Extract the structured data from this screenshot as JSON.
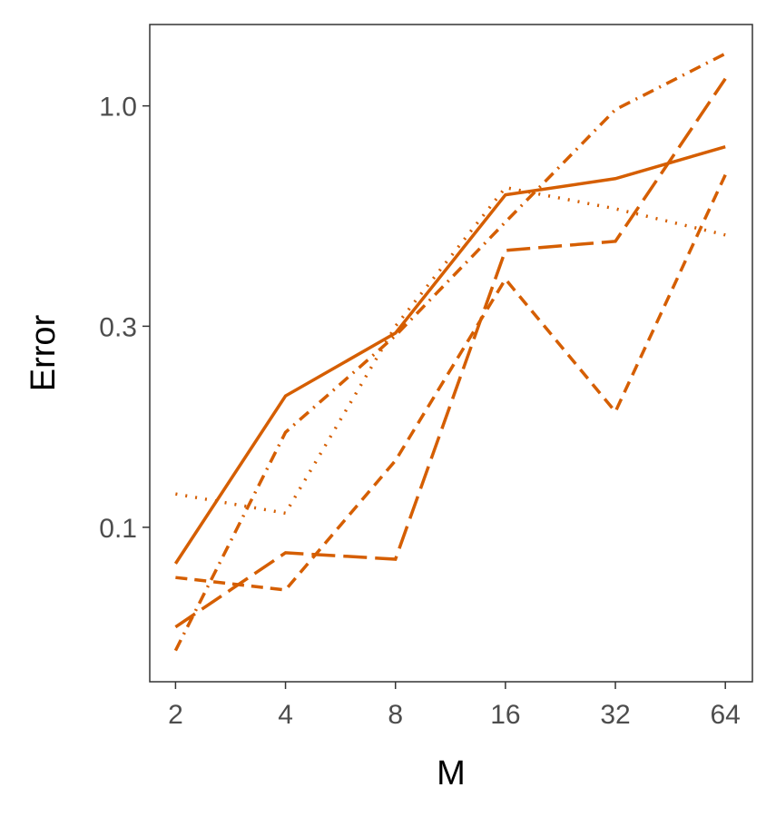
{
  "chart_data": {
    "type": "line",
    "x_label": "M",
    "y_label": "Error",
    "x": [
      2,
      4,
      8,
      16,
      32,
      64
    ],
    "x_log_base": 2,
    "y_log": true,
    "xlim": [
      1.7,
      75.9
    ],
    "xticks": [
      2,
      4,
      8,
      16,
      32,
      64
    ],
    "ylim": [
      0.043,
      1.56
    ],
    "yticks": [
      0.1,
      0.3,
      {
        "value": 1,
        "label": "1.0"
      }
    ],
    "grid": false,
    "series": [
      {
        "color": "#d55e00",
        "dash": "solid",
        "values": [
          0.082,
          0.205,
          0.289,
          0.615,
          0.672,
          0.8
        ]
      },
      {
        "color": "#d55e00",
        "dash": "dotdash",
        "values": [
          0.051,
          0.168,
          0.285,
          0.53,
          0.98,
          1.33
        ]
      },
      {
        "color": "#d55e00",
        "dash": "dotted",
        "values": [
          0.12,
          0.108,
          0.3,
          0.64,
          0.57,
          0.494
        ]
      },
      {
        "color": "#d55e00",
        "dash": "dashed",
        "values": [
          0.076,
          0.071,
          0.144,
          0.388,
          0.188,
          0.686
        ]
      },
      {
        "color": "#d55e00",
        "dash": "longdash",
        "values": [
          0.058,
          0.087,
          0.084,
          0.454,
          0.477,
          1.16
        ]
      }
    ]
  }
}
